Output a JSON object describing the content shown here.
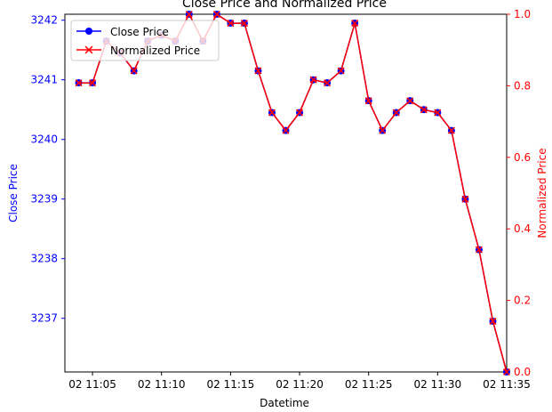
{
  "chart_data": {
    "type": "line",
    "title": "Close Price and Normalized Price",
    "xlabel": "Datetime",
    "ylabel_left": "Close Price",
    "ylabel_right": "Normalized Price",
    "x_tick_labels": [
      "02 11:05",
      "02 11:10",
      "02 11:15",
      "02 11:20",
      "02 11:25",
      "02 11:30",
      "02 11:35"
    ],
    "x_tick_minutes": [
      5,
      10,
      15,
      20,
      25,
      30,
      35
    ],
    "xlim_minutes": [
      3,
      35
    ],
    "left_ticks": [
      3237,
      3238,
      3239,
      3240,
      3241,
      3242
    ],
    "left_ylim": [
      3236.1,
      3242.1
    ],
    "right_ticks": [
      0.0,
      0.2,
      0.4,
      0.6,
      0.8,
      1.0
    ],
    "right_tick_labels": [
      "0.0",
      "0.2",
      "0.4",
      "0.6",
      "0.8",
      "1.0"
    ],
    "right_ylim": [
      0,
      1
    ],
    "legend_position": "top-left",
    "colors": {
      "close": "#0000ff",
      "normalized": "#ff0000",
      "left_axis": "#0000ff",
      "right_axis": "#ff0000"
    },
    "series": [
      {
        "name": "Close Price",
        "marker": "circle",
        "axis": "left",
        "x_minutes": [
          4,
          5,
          6,
          7,
          8,
          9,
          10,
          11,
          12,
          13,
          14,
          15,
          16,
          17,
          18,
          19,
          20,
          21,
          22,
          23,
          24,
          25,
          26,
          27,
          28,
          29,
          30,
          31,
          32,
          33,
          34,
          35
        ],
        "values": [
          3240.95,
          3240.95,
          3241.65,
          3241.45,
          3241.15,
          3241.65,
          3241.75,
          3241.65,
          3242.1,
          3241.65,
          3242.1,
          3241.95,
          3241.95,
          3241.15,
          3240.45,
          3240.15,
          3240.45,
          3241.0,
          3240.95,
          3241.15,
          3241.95,
          3240.65,
          3240.15,
          3240.45,
          3240.65,
          3240.5,
          3240.45,
          3240.15,
          3239.0,
          3238.15,
          3236.95,
          3236.1
        ]
      },
      {
        "name": "Normalized Price",
        "marker": "x",
        "axis": "right",
        "x_minutes": [
          4,
          5,
          6,
          7,
          8,
          9,
          10,
          11,
          12,
          13,
          14,
          15,
          16,
          17,
          18,
          19,
          20,
          21,
          22,
          23,
          24,
          25,
          26,
          27,
          28,
          29,
          30,
          31,
          32,
          33,
          34,
          35
        ],
        "values": [
          0.808,
          0.808,
          0.925,
          0.892,
          0.842,
          0.925,
          0.942,
          0.925,
          1.0,
          0.925,
          1.0,
          0.975,
          0.975,
          0.842,
          0.725,
          0.675,
          0.725,
          0.817,
          0.808,
          0.842,
          0.975,
          0.758,
          0.675,
          0.725,
          0.758,
          0.733,
          0.725,
          0.675,
          0.483,
          0.342,
          0.142,
          0.0
        ]
      }
    ]
  }
}
